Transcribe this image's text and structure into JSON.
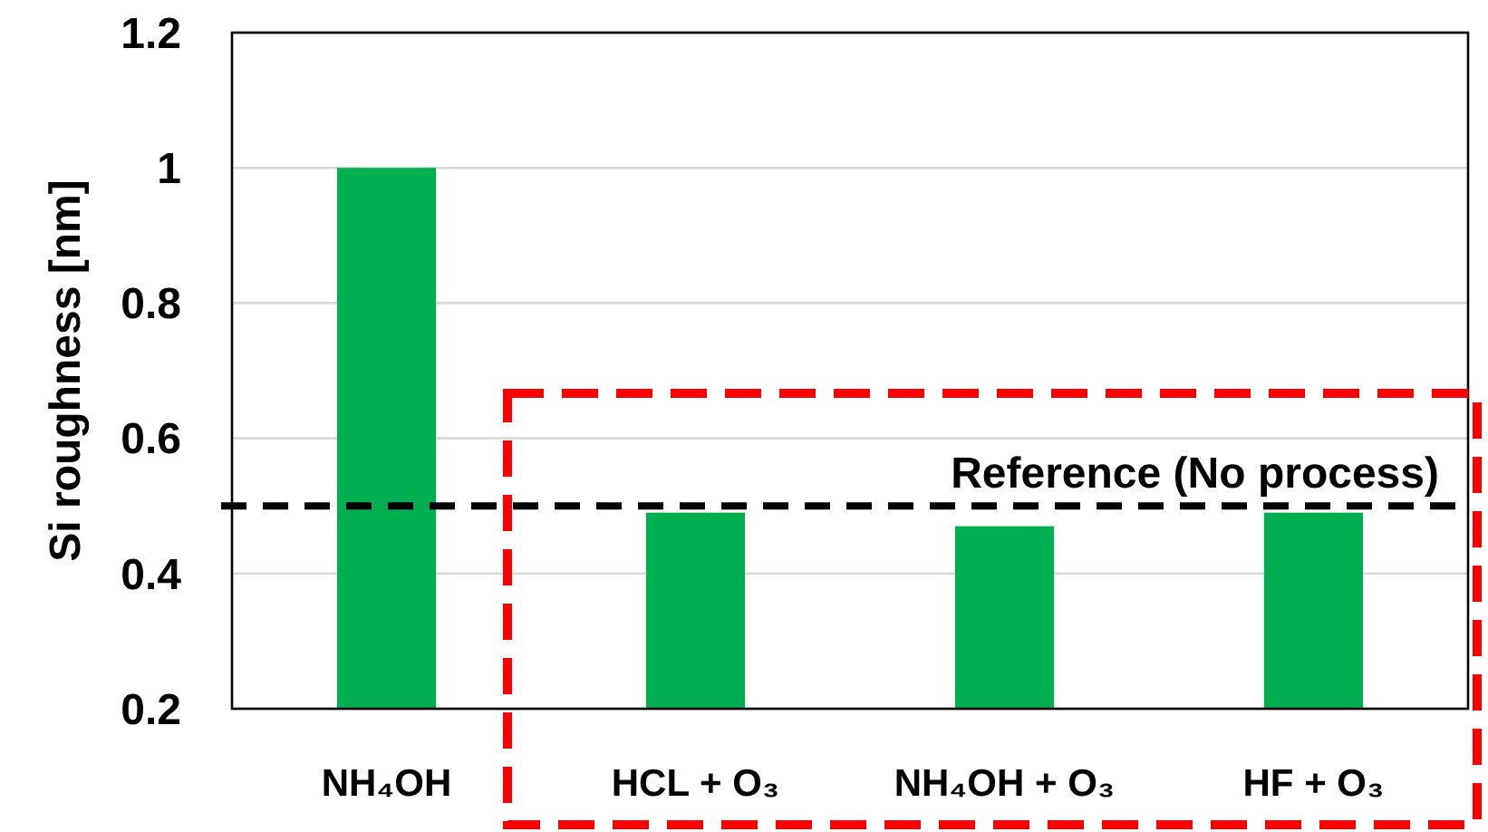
{
  "chart_data": {
    "type": "bar",
    "ylabel": "Si roughness [nm]",
    "categories": [
      "NH₄OH",
      "HCL + O₃",
      "NH₄OH + O₃",
      "HF + O₃"
    ],
    "values": [
      1.0,
      0.49,
      0.47,
      0.49
    ],
    "color": "#00b050",
    "ylim": [
      0.2,
      1.2
    ],
    "yticks": [
      0.2,
      0.4,
      0.6,
      0.8,
      1,
      1.2
    ],
    "grid": "y",
    "ref_lines": [
      {
        "axis": "y",
        "value": 0.5,
        "label": "Reference (No process)",
        "color": "#000000",
        "line_style": "dashed"
      }
    ]
  }
}
